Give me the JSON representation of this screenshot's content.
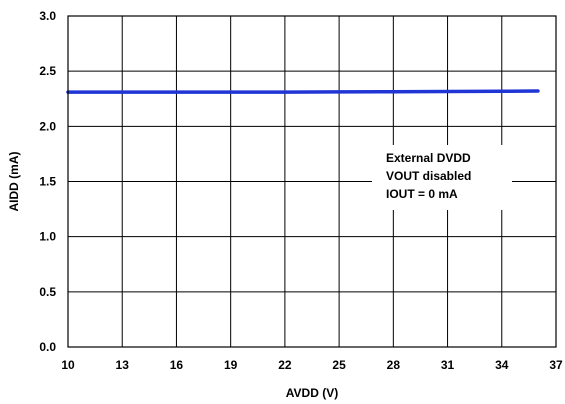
{
  "chart_data": {
    "type": "line",
    "xlabel": "AVDD (V)",
    "ylabel": "AIDD (mA)",
    "xlim": [
      10,
      37
    ],
    "ylim": [
      0.0,
      3.0
    ],
    "x_ticks": [
      10,
      13,
      16,
      19,
      22,
      25,
      28,
      31,
      34,
      37
    ],
    "x_tick_labels": [
      "10",
      "13",
      "16",
      "19",
      "22",
      "25",
      "28",
      "31",
      "34",
      "37"
    ],
    "y_ticks": [
      0.0,
      0.5,
      1.0,
      1.5,
      2.0,
      2.5,
      3.0
    ],
    "y_tick_labels": [
      "0.0",
      "0.5",
      "1.0",
      "1.5",
      "2.0",
      "2.5",
      "3.0"
    ],
    "grid": true,
    "series": [
      {
        "color": "#1f35d6",
        "x": [
          10,
          13,
          16,
          19,
          22,
          25,
          28,
          31,
          34,
          36
        ],
        "y": [
          2.31,
          2.31,
          2.31,
          2.31,
          2.31,
          2.312,
          2.314,
          2.316,
          2.318,
          2.32
        ]
      }
    ],
    "annotations": [
      "External DVDD",
      "VOUT disabled",
      "IOUT  = 0 mA"
    ]
  }
}
